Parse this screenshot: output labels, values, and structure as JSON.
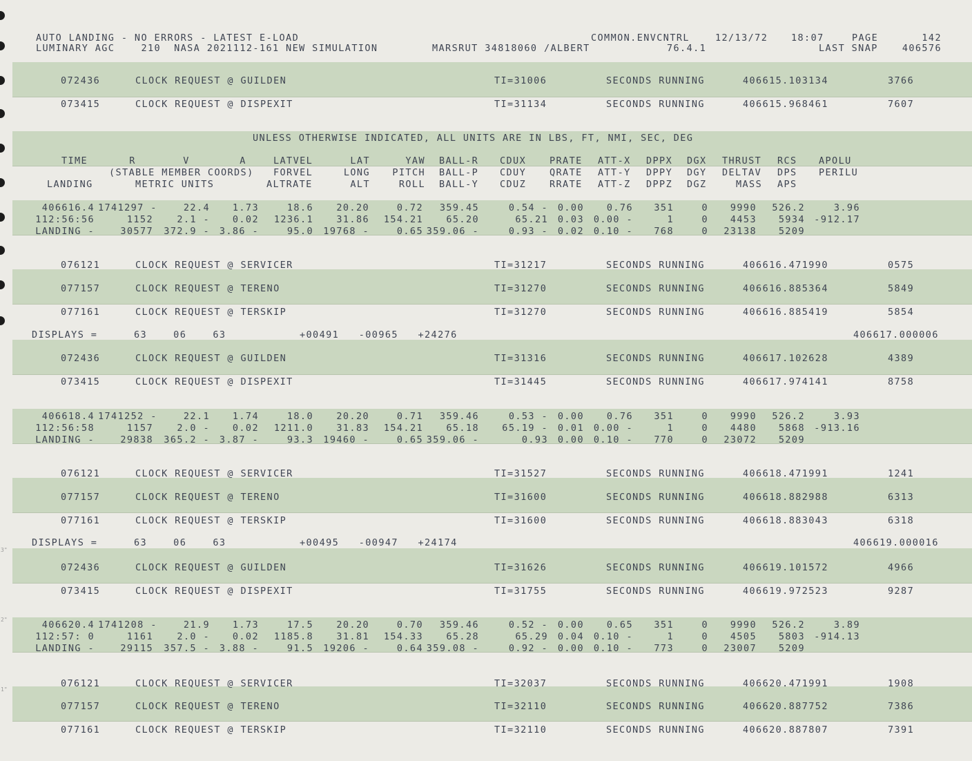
{
  "header": {
    "line1_left": "AUTO LANDING - NO ERRORS - LATEST E-LOAD",
    "line2_left": "LUMINARY AGC    210  NASA 2021112-161 NEW SIMULATION",
    "marsrut": "MARSRUT 34818060 /ALBERT",
    "common": "COMMON.ENVCNTRL",
    "version": "76.4.1",
    "date": "12/13/72",
    "time": "18:07",
    "page_label": "PAGE",
    "page_number": "142",
    "last_snap_label": "LAST SNAP",
    "last_snap": "406576"
  },
  "units_note": "UNLESS OTHERWISE INDICATED, ALL UNITS ARE IN LBS, FT, NMI, SEC, DEG",
  "col_headers": {
    "row1": {
      "time": "TIME",
      "r": "R",
      "v": "V",
      "a": "A",
      "latvel": "LATVEL",
      "lat": "LAT",
      "yaw": "YAW",
      "ballr": "BALL-R",
      "cdux": "CDUX",
      "prate": "PRATE",
      "attx": "ATT-X",
      "dppx": "DPPX",
      "dgx": "DGX",
      "thrust": "THRUST",
      "rcs": "RCS",
      "apolu": "APOLU"
    },
    "row2": {
      "stable": "(STABLE MEMBER COORDS)",
      "forvel": "FORVEL",
      "long": "LONG",
      "pitch": "PITCH",
      "ballp": "BALL-P",
      "cduy": "CDUY",
      "qrate": "QRATE",
      "atty": "ATT-Y",
      "dppy": "DPPY",
      "dgy": "DGY",
      "deltav": "DELTAV",
      "dps": "DPS",
      "perilu": "PERILU"
    },
    "row3": {
      "landing": "LANDING",
      "metric": "METRIC UNITS",
      "altrate": "ALTRATE",
      "alt": "ALT",
      "roll": "ROLL",
      "bally": "BALL-Y",
      "cduz": "CDUZ",
      "rrate": "RRATE",
      "attz": "ATT-Z",
      "dppz": "DPPZ",
      "dgz": "DGZ",
      "mass": "MASS",
      "aps": "APS"
    }
  },
  "clock_rows": [
    {
      "addr": "072436",
      "desc": "CLOCK REQUEST @ GUILDEN",
      "ti": "TI=31006",
      "status": "SECONDS RUNNING",
      "secs": "406615.103134",
      "code": "3766"
    },
    {
      "addr": "073415",
      "desc": "CLOCK REQUEST @ DISPEXIT",
      "ti": "TI=31134",
      "status": "SECONDS RUNNING",
      "secs": "406615.968461",
      "code": "7607"
    },
    {
      "addr": "076121",
      "desc": "CLOCK REQUEST @ SERVICER",
      "ti": "TI=31217",
      "status": "SECONDS RUNNING",
      "secs": "406616.471990",
      "code": "0575"
    },
    {
      "addr": "077157",
      "desc": "CLOCK REQUEST @ TERENO",
      "ti": "TI=31270",
      "status": "SECONDS RUNNING",
      "secs": "406616.885364",
      "code": "5849"
    },
    {
      "addr": "077161",
      "desc": "CLOCK REQUEST @ TERSKIP",
      "ti": "TI=31270",
      "status": "SECONDS RUNNING",
      "secs": "406616.885419",
      "code": "5854"
    },
    {
      "addr": "072436",
      "desc": "CLOCK REQUEST @ GUILDEN",
      "ti": "TI=31316",
      "status": "SECONDS RUNNING",
      "secs": "406617.102628",
      "code": "4389"
    },
    {
      "addr": "073415",
      "desc": "CLOCK REQUEST @ DISPEXIT",
      "ti": "TI=31445",
      "status": "SECONDS RUNNING",
      "secs": "406617.974141",
      "code": "8758"
    },
    {
      "addr": "076121",
      "desc": "CLOCK REQUEST @ SERVICER",
      "ti": "TI=31527",
      "status": "SECONDS RUNNING",
      "secs": "406618.471991",
      "code": "1241"
    },
    {
      "addr": "077157",
      "desc": "CLOCK REQUEST @ TERENO",
      "ti": "TI=31600",
      "status": "SECONDS RUNNING",
      "secs": "406618.882988",
      "code": "6313"
    },
    {
      "addr": "077161",
      "desc": "CLOCK REQUEST @ TERSKIP",
      "ti": "TI=31600",
      "status": "SECONDS RUNNING",
      "secs": "406618.883043",
      "code": "6318"
    },
    {
      "addr": "072436",
      "desc": "CLOCK REQUEST @ GUILDEN",
      "ti": "TI=31626",
      "status": "SECONDS RUNNING",
      "secs": "406619.101572",
      "code": "4966"
    },
    {
      "addr": "073415",
      "desc": "CLOCK REQUEST @ DISPEXIT",
      "ti": "TI=31755",
      "status": "SECONDS RUNNING",
      "secs": "406619.972523",
      "code": "9287"
    },
    {
      "addr": "076121",
      "desc": "CLOCK REQUEST @ SERVICER",
      "ti": "TI=32037",
      "status": "SECONDS RUNNING",
      "secs": "406620.471991",
      "code": "1908"
    },
    {
      "addr": "077157",
      "desc": "CLOCK REQUEST @ TERENO",
      "ti": "TI=32110",
      "status": "SECONDS RUNNING",
      "secs": "406620.887752",
      "code": "7386"
    },
    {
      "addr": "077161",
      "desc": "CLOCK REQUEST @ TERSKIP",
      "ti": "TI=32110",
      "status": "SECONDS RUNNING",
      "secs": "406620.887807",
      "code": "7391"
    }
  ],
  "displays": [
    {
      "label": "DISPLAYS =",
      "vals": "63    06    63",
      "regs": "+00491   -00965   +24276",
      "time": "406617.000006"
    },
    {
      "label": "DISPLAYS =",
      "vals": "63    06    63",
      "regs": "+00495   -00947   +24174",
      "time": "406619.000016"
    }
  ],
  "data_blocks": [
    {
      "rows": [
        [
          "406616.4",
          "1741297 -",
          "22.4",
          "1.73",
          "18.6",
          "20.20",
          "0.72",
          "359.45",
          "0.54 -",
          "0.00",
          "0.76",
          "351",
          "0",
          "9990",
          "526.2",
          "3.96"
        ],
        [
          "112:56:56",
          "1152",
          "2.1 -",
          "0.02",
          "1236.1",
          "31.86",
          "154.21",
          "65.20",
          "65.21",
          "0.03",
          "0.00 -",
          "1",
          "0",
          "4453",
          "5934",
          "-912.17"
        ],
        [
          "LANDING -",
          "30577",
          "372.9 -",
          "3.86 -",
          "95.0",
          "19768 -",
          "0.65",
          "359.06 -",
          "0.93 -",
          "0.02",
          "0.10 -",
          "768",
          "0",
          "23138",
          "5209",
          ""
        ]
      ]
    },
    {
      "rows": [
        [
          "406618.4",
          "1741252 -",
          "22.1",
          "1.74",
          "18.0",
          "20.20",
          "0.71",
          "359.46",
          "0.53 -",
          "0.00",
          "0.76",
          "351",
          "0",
          "9990",
          "526.2",
          "3.93"
        ],
        [
          "112:56:58",
          "1157",
          "2.0 -",
          "0.02",
          "1211.0",
          "31.83",
          "154.21",
          "65.18",
          "65.19 -",
          "0.01",
          "0.00 -",
          "1",
          "0",
          "4480",
          "5868",
          "-913.16"
        ],
        [
          "LANDING -",
          "29838",
          "365.2 -",
          "3.87 -",
          "93.3",
          "19460 -",
          "0.65",
          "359.06 -",
          "0.93",
          "0.00",
          "0.10 -",
          "770",
          "0",
          "23072",
          "5209",
          ""
        ]
      ]
    },
    {
      "rows": [
        [
          "406620.4",
          "1741208 -",
          "21.9",
          "1.73",
          "17.5",
          "20.20",
          "0.70",
          "359.46",
          "0.52 -",
          "0.00",
          "0.65",
          "351",
          "0",
          "9990",
          "526.2",
          "3.89"
        ],
        [
          "112:57: 0",
          "1161",
          "2.0 -",
          "0.02",
          "1185.8",
          "31.81",
          "154.33",
          "65.28",
          "65.29",
          "0.04",
          "0.10 -",
          "1",
          "0",
          "4505",
          "5803",
          "-914.13"
        ],
        [
          "LANDING -",
          "29115",
          "357.5 -",
          "3.88 -",
          "91.5",
          "19206 -",
          "0.64",
          "359.08 -",
          "0.92 -",
          "0.00",
          "0.10 -",
          "773",
          "0",
          "23007",
          "5209",
          ""
        ]
      ]
    }
  ],
  "margin_marks": [
    "3\"",
    "2\"",
    "1\""
  ]
}
